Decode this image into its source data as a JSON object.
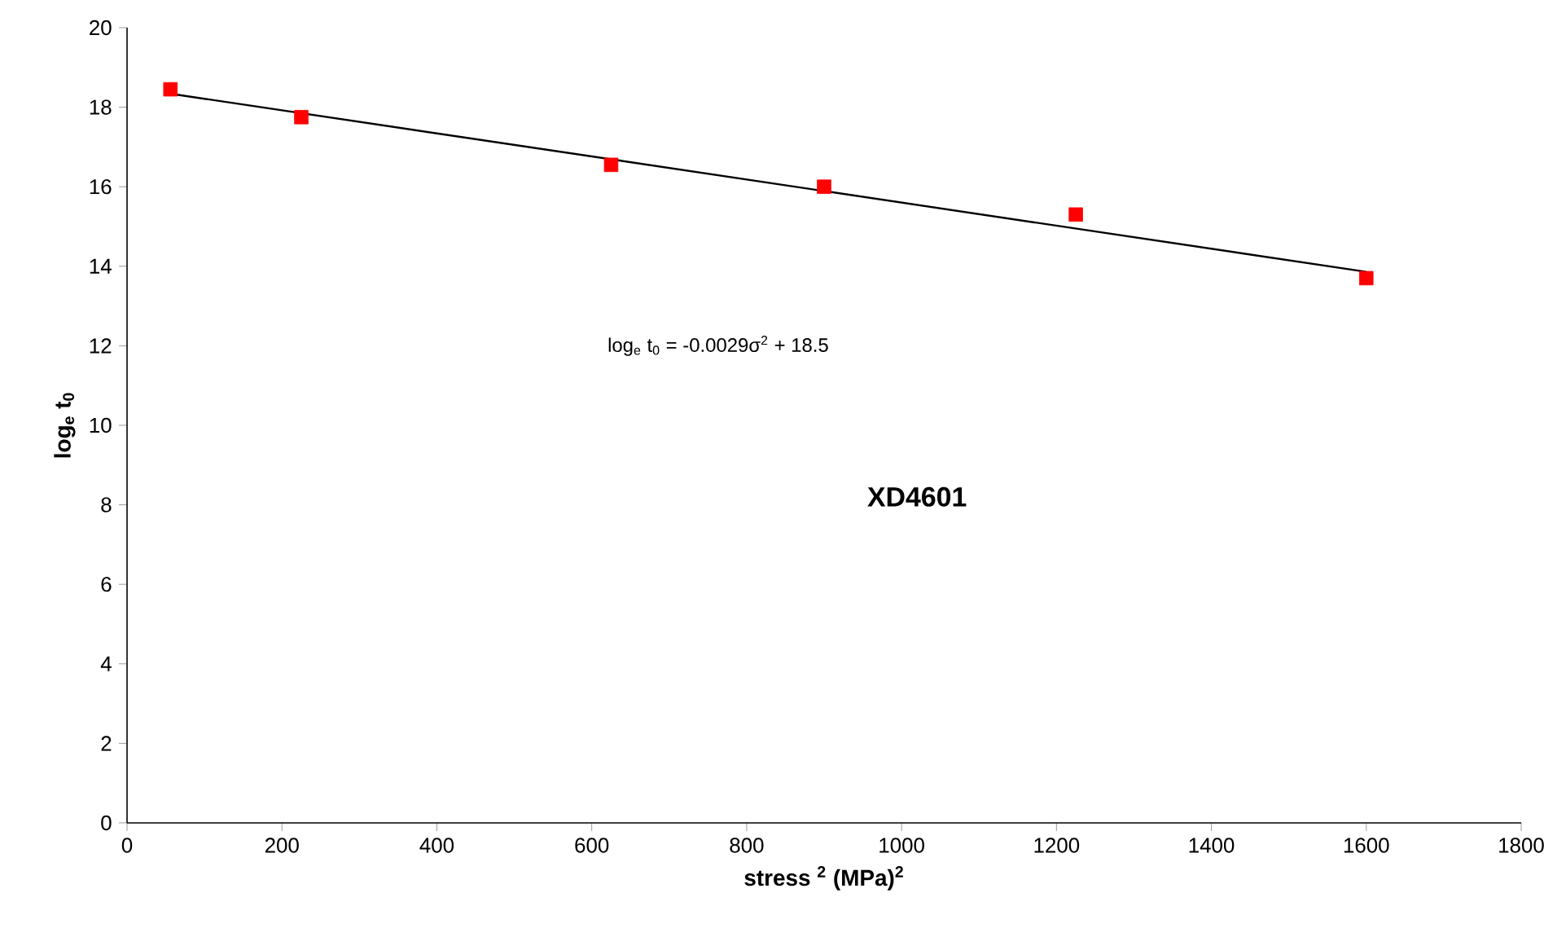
{
  "chart_data": {
    "type": "scatter",
    "xlabel": "stress $^{2}$ (MPa)$^{2}$",
    "ylabel": "log$_{e}$ t$_{0}$",
    "xlim": [
      0,
      1800
    ],
    "xticks": [
      0,
      200,
      400,
      600,
      800,
      1000,
      1200,
      1400,
      1600,
      1800
    ],
    "ylim": [
      0,
      20
    ],
    "yticks": [
      0,
      2,
      4,
      6,
      8,
      10,
      12,
      14,
      16,
      18,
      20
    ],
    "series": [
      {
        "color": "#ff0000",
        "marker": "square",
        "x": [
          56,
          225,
          625,
          900,
          1225,
          1600
        ],
        "values": [
          18.45,
          17.75,
          16.55,
          16.0,
          15.3,
          13.7
        ]
      },
      {
        "type": "line",
        "color": "#000000",
        "marker": "none",
        "line_style": "solid",
        "x": [
          56,
          1600
        ],
        "values": [
          18.34,
          13.86
        ]
      }
    ],
    "annotations": [
      "log$_{e}$ t$_{0}$ = -0.0029σ$^{2}$ + 18.5",
      "XD4601"
    ]
  }
}
